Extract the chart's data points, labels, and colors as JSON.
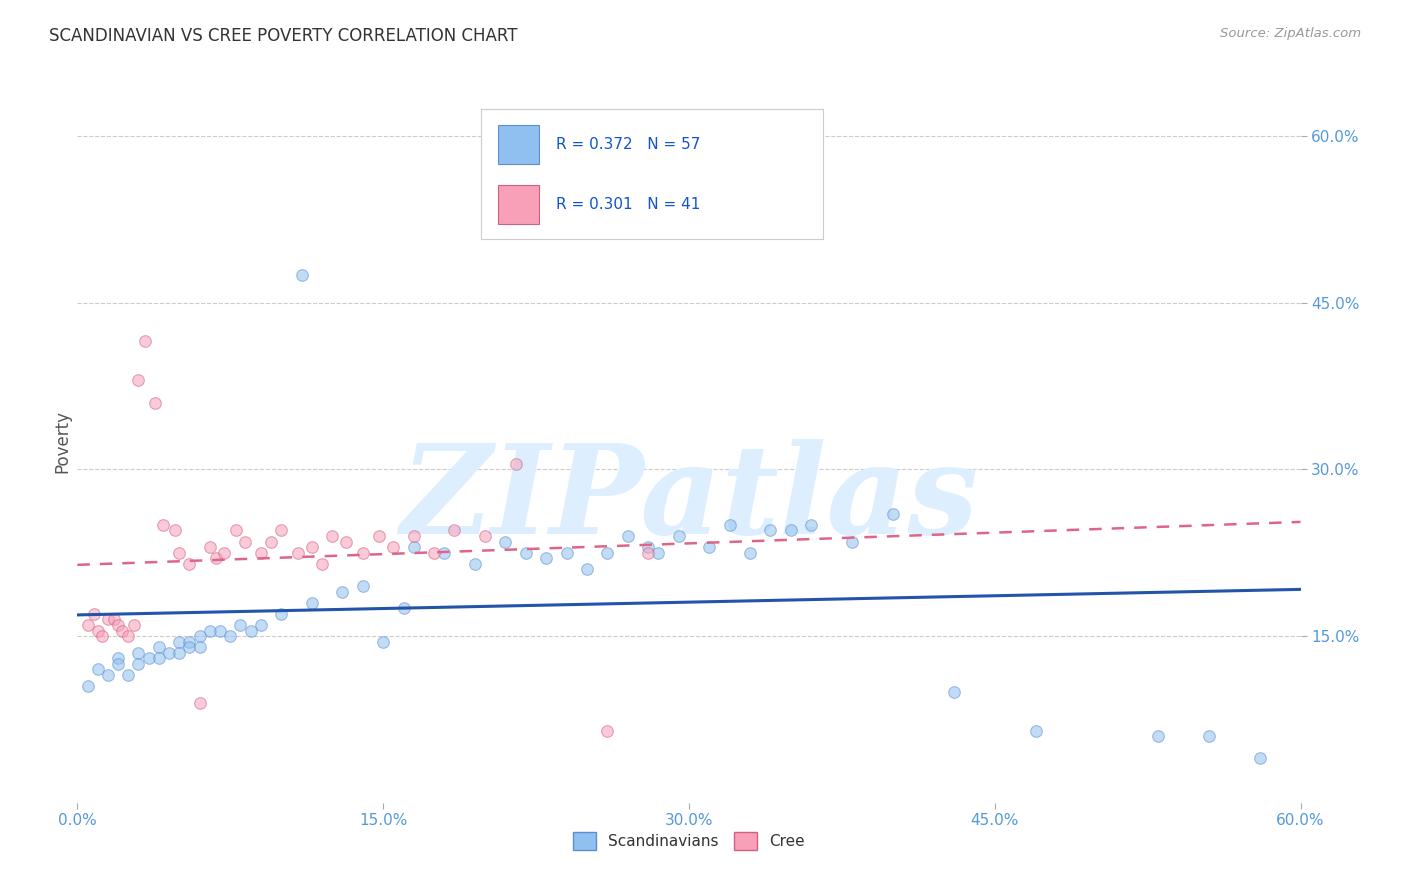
{
  "title": "SCANDINAVIAN VS CREE POVERTY CORRELATION CHART",
  "source": "Source: ZipAtlas.com",
  "ylabel": "Poverty",
  "scand_color": "#90C0F0",
  "cree_color": "#F8A0B8",
  "scand_edge": "#5A8FD0",
  "cree_edge": "#D06080",
  "trend_scand_color": "#2255AA",
  "trend_cree_color": "#DD6688",
  "background": "#FFFFFF",
  "grid_color": "#CCCCCC",
  "R_scand": 0.372,
  "N_scand": 57,
  "R_cree": 0.301,
  "N_cree": 41,
  "watermark_text": "ZIPatlas",
  "watermark_color": "#DDEEFF",
  "marker_size": 70,
  "marker_alpha": 0.55,
  "scand_x": [
    0.005,
    0.01,
    0.015,
    0.02,
    0.02,
    0.025,
    0.03,
    0.03,
    0.035,
    0.04,
    0.04,
    0.045,
    0.05,
    0.05,
    0.055,
    0.055,
    0.06,
    0.06,
    0.065,
    0.07,
    0.075,
    0.08,
    0.085,
    0.09,
    0.1,
    0.11,
    0.115,
    0.13,
    0.14,
    0.15,
    0.16,
    0.165,
    0.18,
    0.195,
    0.21,
    0.22,
    0.23,
    0.24,
    0.25,
    0.26,
    0.27,
    0.28,
    0.285,
    0.295,
    0.31,
    0.32,
    0.33,
    0.34,
    0.35,
    0.36,
    0.38,
    0.4,
    0.43,
    0.47,
    0.53,
    0.555,
    0.58
  ],
  "scand_y": [
    0.105,
    0.12,
    0.115,
    0.13,
    0.125,
    0.115,
    0.135,
    0.125,
    0.13,
    0.14,
    0.13,
    0.135,
    0.145,
    0.135,
    0.145,
    0.14,
    0.15,
    0.14,
    0.155,
    0.155,
    0.15,
    0.16,
    0.155,
    0.16,
    0.17,
    0.475,
    0.18,
    0.19,
    0.195,
    0.145,
    0.175,
    0.23,
    0.225,
    0.215,
    0.235,
    0.225,
    0.22,
    0.225,
    0.21,
    0.225,
    0.24,
    0.23,
    0.225,
    0.24,
    0.23,
    0.25,
    0.225,
    0.245,
    0.245,
    0.25,
    0.235,
    0.26,
    0.1,
    0.065,
    0.06,
    0.06,
    0.04
  ],
  "cree_x": [
    0.005,
    0.008,
    0.01,
    0.012,
    0.015,
    0.018,
    0.02,
    0.022,
    0.025,
    0.028,
    0.03,
    0.033,
    0.038,
    0.042,
    0.048,
    0.05,
    0.055,
    0.06,
    0.065,
    0.068,
    0.072,
    0.078,
    0.082,
    0.09,
    0.095,
    0.1,
    0.108,
    0.115,
    0.12,
    0.125,
    0.132,
    0.14,
    0.148,
    0.155,
    0.165,
    0.175,
    0.185,
    0.2,
    0.215,
    0.26,
    0.28
  ],
  "cree_y": [
    0.16,
    0.17,
    0.155,
    0.15,
    0.165,
    0.165,
    0.16,
    0.155,
    0.15,
    0.16,
    0.38,
    0.415,
    0.36,
    0.25,
    0.245,
    0.225,
    0.215,
    0.09,
    0.23,
    0.22,
    0.225,
    0.245,
    0.235,
    0.225,
    0.235,
    0.245,
    0.225,
    0.23,
    0.215,
    0.24,
    0.235,
    0.225,
    0.24,
    0.23,
    0.24,
    0.225,
    0.245,
    0.24,
    0.305,
    0.065,
    0.225
  ],
  "xlim": [
    0.0,
    0.6
  ],
  "ylim": [
    0.0,
    0.65
  ],
  "xticks": [
    0.0,
    0.15,
    0.3,
    0.45,
    0.6
  ],
  "xticklabels": [
    "0.0%",
    "15.0%",
    "30.0%",
    "45.0%",
    "60.0%"
  ],
  "yticks_right": [
    0.15,
    0.3,
    0.45,
    0.6
  ],
  "yticklabels_right": [
    "15.0%",
    "30.0%",
    "45.0%",
    "60.0%"
  ],
  "tick_color": "#5599DD"
}
